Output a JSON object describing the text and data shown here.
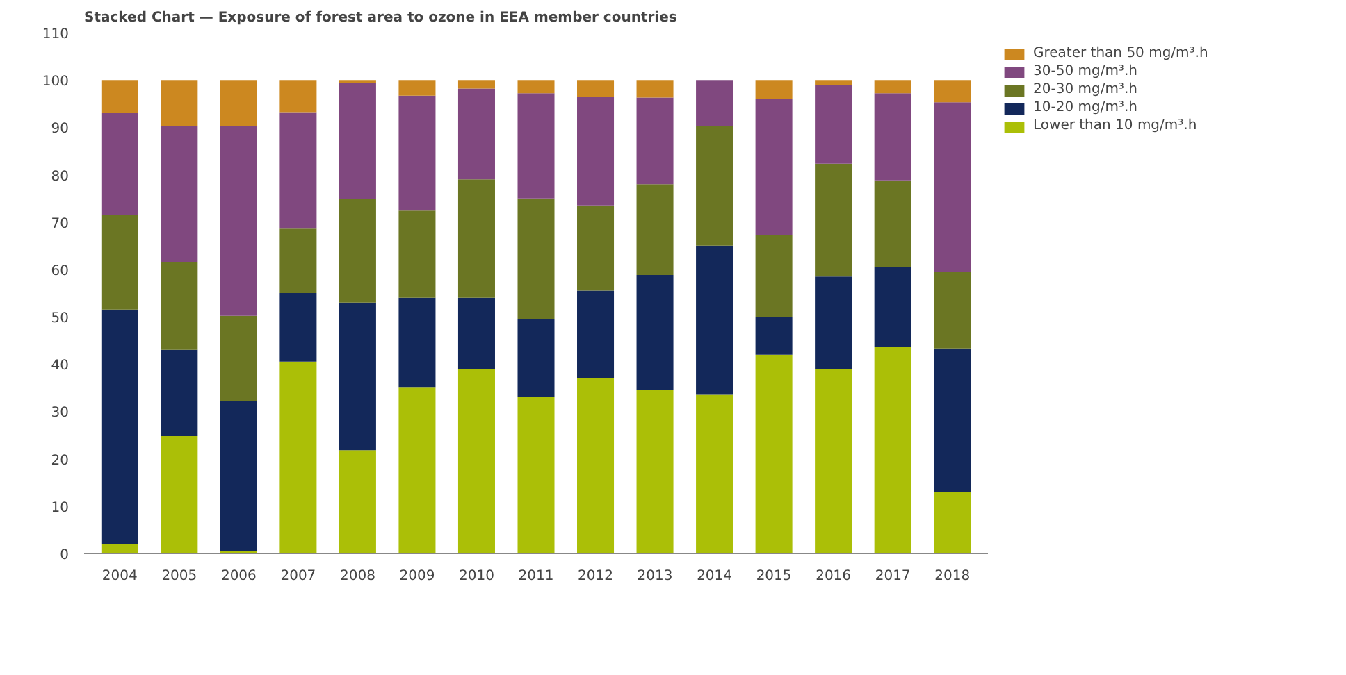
{
  "chart_data": {
    "type": "bar",
    "stacked": true,
    "title": "Stacked Chart — Exposure of forest area to ozone in EEA member countries",
    "categories": [
      "2004",
      "2005",
      "2006",
      "2007",
      "2008",
      "2009",
      "2010",
      "2011",
      "2012",
      "2013",
      "2014",
      "2015",
      "2016",
      "2017",
      "2018"
    ],
    "series": [
      {
        "name": "Lower than 10 mg/m³.h",
        "color": "#abbf07",
        "values": [
          2,
          24.8,
          0.5,
          40.5,
          21.8,
          35,
          39,
          33,
          37,
          34.5,
          33.5,
          42,
          39,
          43.7,
          13
        ]
      },
      {
        "name": "10-20 mg/m³.h",
        "color": "#13285a",
        "values": [
          49.5,
          18.2,
          31.7,
          14.5,
          31.2,
          19,
          15,
          16.5,
          18.5,
          24.3,
          31.5,
          8,
          19.5,
          16.8,
          30.3
        ]
      },
      {
        "name": "20-30 mg/m³.h",
        "color": "#6b7623",
        "values": [
          20,
          18.6,
          18,
          13.6,
          21.8,
          18.4,
          25,
          25.5,
          18,
          19.2,
          25.2,
          17.3,
          23.8,
          18.3,
          16.2
        ]
      },
      {
        "name": "30-50 mg/m³.h",
        "color": "#80487f",
        "values": [
          21.5,
          28.7,
          40,
          24.6,
          24.5,
          24.3,
          19.2,
          22.2,
          23,
          18.3,
          9.8,
          28.7,
          16.7,
          18.4,
          35.8
        ]
      },
      {
        "name": "Greater than 50 mg/m³.h",
        "color": "#cc8820",
        "values": [
          7,
          9.7,
          9.8,
          6.8,
          0.7,
          3.3,
          1.8,
          2.8,
          3.5,
          3.7,
          0,
          4,
          1,
          2.8,
          4.7
        ]
      }
    ],
    "ylim": [
      0,
      110
    ],
    "yticks": [
      0,
      10,
      20,
      30,
      40,
      50,
      60,
      70,
      80,
      90,
      100,
      110
    ],
    "grid": false,
    "legend": "top right"
  }
}
